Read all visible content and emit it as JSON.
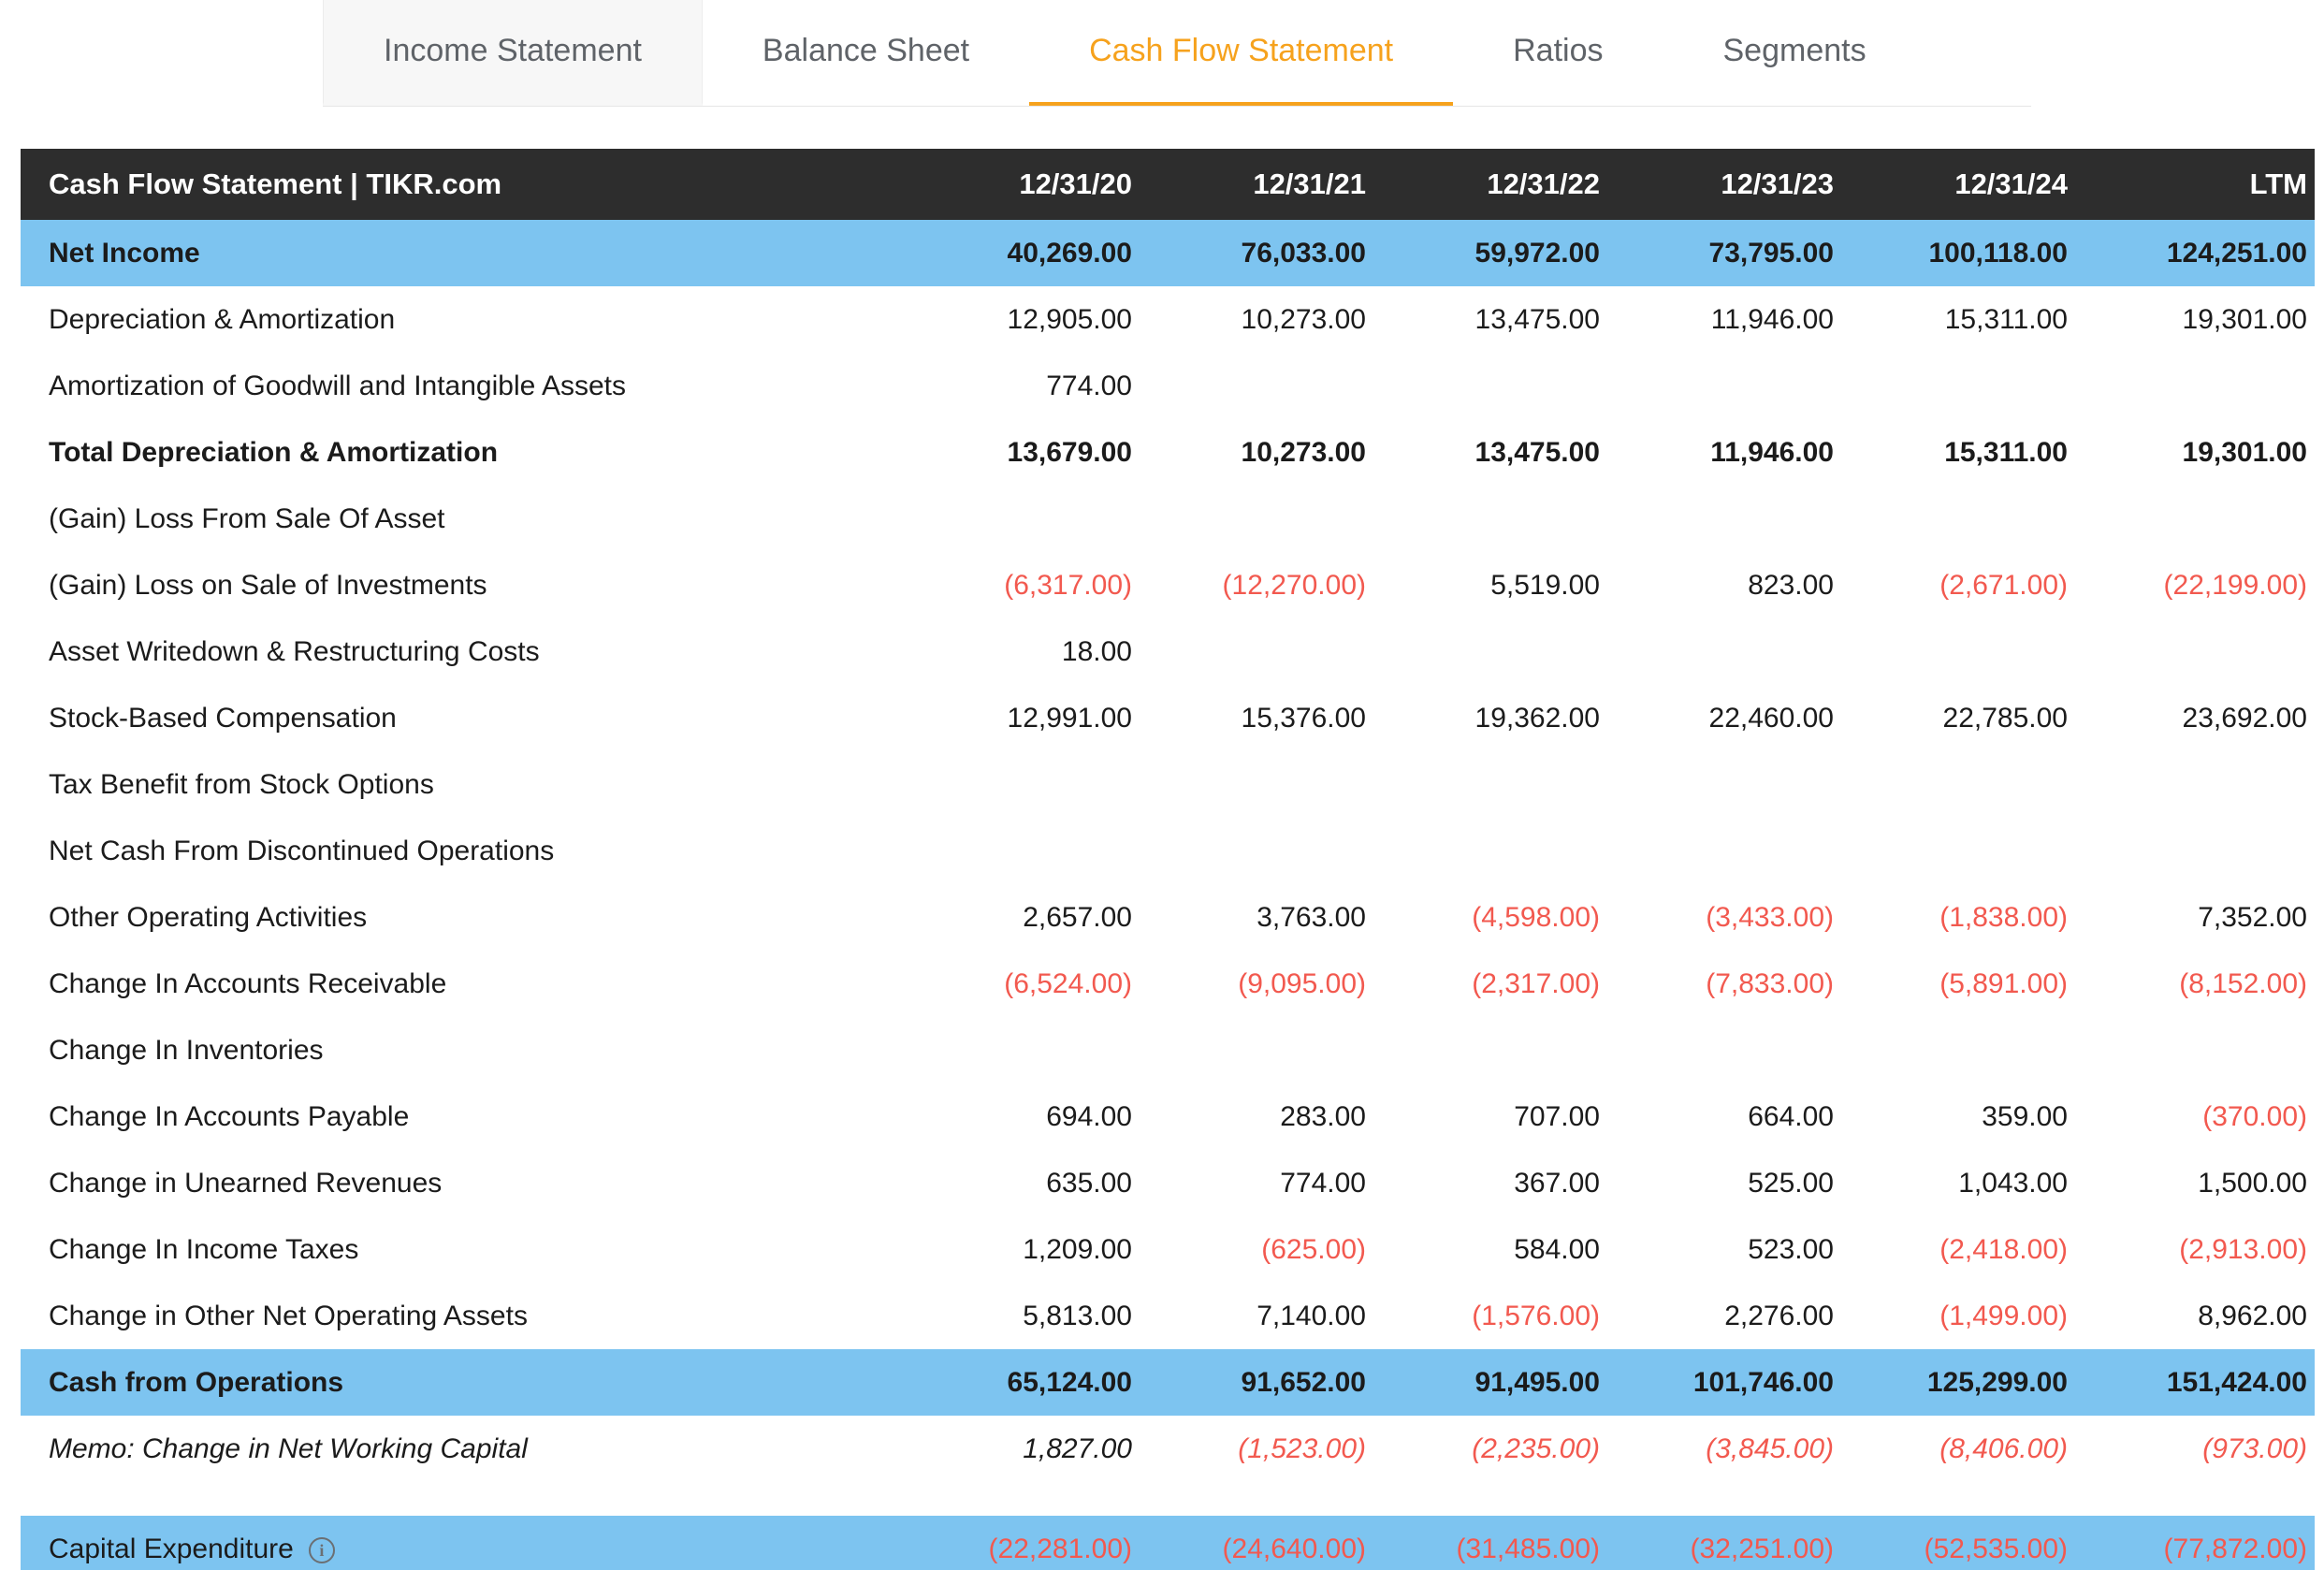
{
  "colors": {
    "accent_orange": "#f6a21d",
    "highlight_blue": "#7dc4f0",
    "negative_red": "#f2594f",
    "header_bg": "#2d2d2d"
  },
  "tabs": [
    {
      "label": "Income Statement",
      "active": false,
      "shaded": true
    },
    {
      "label": "Balance Sheet",
      "active": false,
      "shaded": false
    },
    {
      "label": "Cash Flow Statement",
      "active": true,
      "shaded": false
    },
    {
      "label": "Ratios",
      "active": false,
      "shaded": false
    },
    {
      "label": "Segments",
      "active": false,
      "shaded": false
    }
  ],
  "table": {
    "title": "Cash Flow Statement | TIKR.com",
    "columns": [
      "12/31/20",
      "12/31/21",
      "12/31/22",
      "12/31/23",
      "12/31/24",
      "LTM"
    ],
    "rows": [
      {
        "label": "Net Income",
        "highlight": true,
        "bold": true,
        "italic": false,
        "info_icon": false,
        "values": [
          "40,269.00",
          "76,033.00",
          "59,972.00",
          "73,795.00",
          "100,118.00",
          "124,251.00"
        ]
      },
      {
        "label": "Depreciation & Amortization",
        "highlight": false,
        "bold": false,
        "italic": false,
        "info_icon": false,
        "values": [
          "12,905.00",
          "10,273.00",
          "13,475.00",
          "11,946.00",
          "15,311.00",
          "19,301.00"
        ]
      },
      {
        "label": "Amortization of Goodwill and Intangible Assets",
        "highlight": false,
        "bold": false,
        "italic": false,
        "info_icon": false,
        "values": [
          "774.00",
          "",
          "",
          "",
          "",
          ""
        ]
      },
      {
        "label": "Total Depreciation & Amortization",
        "highlight": false,
        "bold": true,
        "italic": false,
        "info_icon": false,
        "values": [
          "13,679.00",
          "10,273.00",
          "13,475.00",
          "11,946.00",
          "15,311.00",
          "19,301.00"
        ]
      },
      {
        "label": "(Gain) Loss From Sale Of Asset",
        "highlight": false,
        "bold": false,
        "italic": false,
        "info_icon": false,
        "values": [
          "",
          "",
          "",
          "",
          "",
          ""
        ]
      },
      {
        "label": "(Gain) Loss on Sale of Investments",
        "highlight": false,
        "bold": false,
        "italic": false,
        "info_icon": false,
        "values": [
          "(6,317.00)",
          "(12,270.00)",
          "5,519.00",
          "823.00",
          "(2,671.00)",
          "(22,199.00)"
        ]
      },
      {
        "label": "Asset Writedown & Restructuring Costs",
        "highlight": false,
        "bold": false,
        "italic": false,
        "info_icon": false,
        "values": [
          "18.00",
          "",
          "",
          "",
          "",
          ""
        ]
      },
      {
        "label": "Stock-Based Compensation",
        "highlight": false,
        "bold": false,
        "italic": false,
        "info_icon": false,
        "values": [
          "12,991.00",
          "15,376.00",
          "19,362.00",
          "22,460.00",
          "22,785.00",
          "23,692.00"
        ]
      },
      {
        "label": "Tax Benefit from Stock Options",
        "highlight": false,
        "bold": false,
        "italic": false,
        "info_icon": false,
        "values": [
          "",
          "",
          "",
          "",
          "",
          ""
        ]
      },
      {
        "label": "Net Cash From Discontinued Operations",
        "highlight": false,
        "bold": false,
        "italic": false,
        "info_icon": false,
        "values": [
          "",
          "",
          "",
          "",
          "",
          ""
        ]
      },
      {
        "label": "Other Operating Activities",
        "highlight": false,
        "bold": false,
        "italic": false,
        "info_icon": false,
        "values": [
          "2,657.00",
          "3,763.00",
          "(4,598.00)",
          "(3,433.00)",
          "(1,838.00)",
          "7,352.00"
        ]
      },
      {
        "label": "Change In Accounts Receivable",
        "highlight": false,
        "bold": false,
        "italic": false,
        "info_icon": false,
        "values": [
          "(6,524.00)",
          "(9,095.00)",
          "(2,317.00)",
          "(7,833.00)",
          "(5,891.00)",
          "(8,152.00)"
        ]
      },
      {
        "label": "Change In Inventories",
        "highlight": false,
        "bold": false,
        "italic": false,
        "info_icon": false,
        "values": [
          "",
          "",
          "",
          "",
          "",
          ""
        ]
      },
      {
        "label": "Change In Accounts Payable",
        "highlight": false,
        "bold": false,
        "italic": false,
        "info_icon": false,
        "values": [
          "694.00",
          "283.00",
          "707.00",
          "664.00",
          "359.00",
          "(370.00)"
        ]
      },
      {
        "label": "Change in Unearned Revenues",
        "highlight": false,
        "bold": false,
        "italic": false,
        "info_icon": false,
        "values": [
          "635.00",
          "774.00",
          "367.00",
          "525.00",
          "1,043.00",
          "1,500.00"
        ]
      },
      {
        "label": "Change In Income Taxes",
        "highlight": false,
        "bold": false,
        "italic": false,
        "info_icon": false,
        "values": [
          "1,209.00",
          "(625.00)",
          "584.00",
          "523.00",
          "(2,418.00)",
          "(2,913.00)"
        ]
      },
      {
        "label": "Change in Other Net Operating Assets",
        "highlight": false,
        "bold": false,
        "italic": false,
        "info_icon": false,
        "values": [
          "5,813.00",
          "7,140.00",
          "(1,576.00)",
          "2,276.00",
          "(1,499.00)",
          "8,962.00"
        ]
      },
      {
        "label": "Cash from Operations",
        "highlight": true,
        "bold": true,
        "italic": false,
        "info_icon": false,
        "values": [
          "65,124.00",
          "91,652.00",
          "91,495.00",
          "101,746.00",
          "125,299.00",
          "151,424.00"
        ]
      },
      {
        "label": "Memo: Change in Net Working Capital",
        "highlight": false,
        "bold": false,
        "italic": true,
        "info_icon": false,
        "values": [
          "1,827.00",
          "(1,523.00)",
          "(2,235.00)",
          "(3,845.00)",
          "(8,406.00)",
          "(973.00)"
        ]
      },
      {
        "spacer": true
      },
      {
        "label": "Capital Expenditure",
        "highlight": true,
        "bold": false,
        "italic": false,
        "info_icon": true,
        "values": [
          "(22,281.00)",
          "(24,640.00)",
          "(31,485.00)",
          "(32,251.00)",
          "(52,535.00)",
          "(77,872.00)"
        ]
      }
    ]
  }
}
